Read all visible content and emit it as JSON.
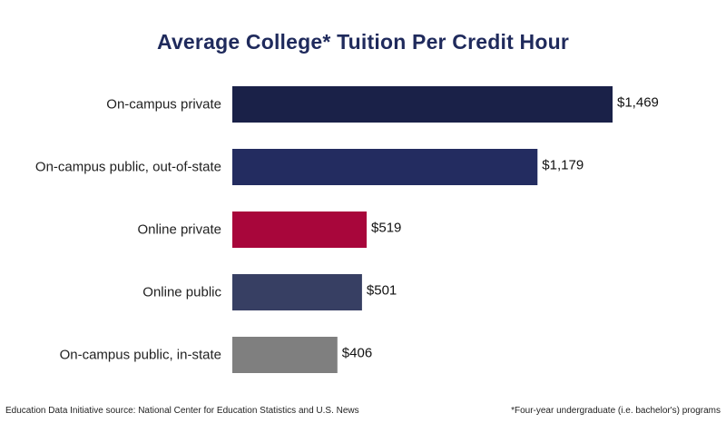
{
  "chart_data": {
    "type": "bar",
    "orientation": "horizontal",
    "title": "Average College* Tuition Per Credit Hour",
    "categories": [
      "On-campus private",
      "On-campus public, out-of-state",
      "Online private",
      "Online public",
      "On-campus public, in-state"
    ],
    "values": [
      1469,
      1179,
      519,
      501,
      406
    ],
    "value_labels": [
      "$1,469",
      "$1,179",
      "$519",
      "$501",
      "$406"
    ],
    "colors": [
      "#1a2148",
      "#232c60",
      "#a8063b",
      "#373f63",
      "#7f7f7f"
    ],
    "xlim": [
      0,
      1469
    ],
    "grid": false,
    "legend": "none"
  },
  "footer": {
    "source": "Education Data Initiative source: National Center for Education Statistics and U.S. News",
    "note": "*Four-year undergraduate (i.e. bachelor's) programs"
  }
}
